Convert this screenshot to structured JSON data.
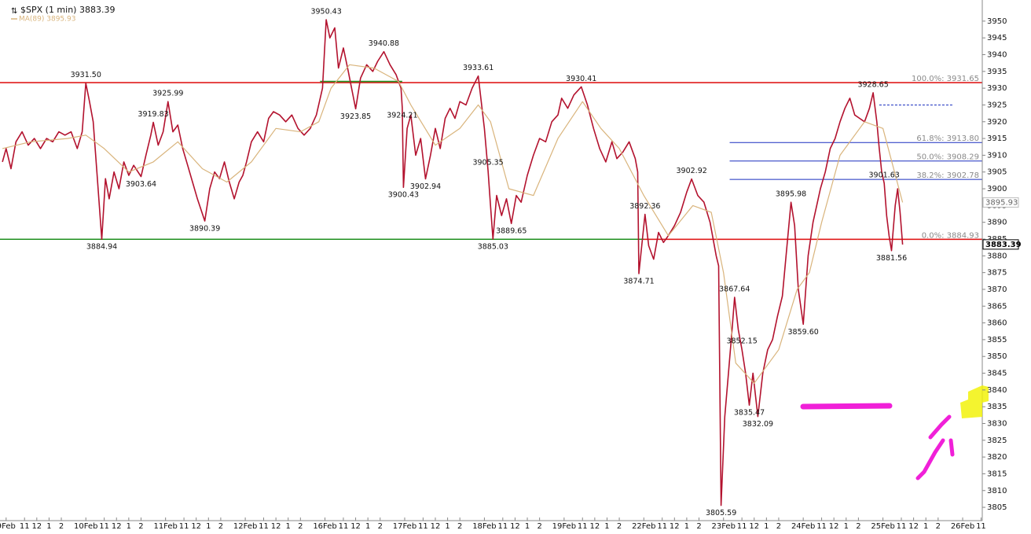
{
  "chart_data": {
    "type": "line",
    "xlim": [
      -0.5,
      79.6
    ],
    "ylim": [
      3801.5,
      3956.3
    ],
    "yticks": [
      3805,
      3810,
      3815,
      3820,
      3825,
      3830,
      3835,
      3840,
      3845,
      3850,
      3855,
      3860,
      3865,
      3870,
      3875,
      3880,
      3885,
      3890,
      3895,
      3900,
      3905,
      3910,
      3915,
      3920,
      3925,
      3930,
      3935,
      3940,
      3945,
      3950
    ],
    "xticks": [
      {
        "value": 0,
        "label": "9Feb"
      },
      {
        "value": 1.5,
        "label": "11"
      },
      {
        "value": 2.5,
        "label": "12"
      },
      {
        "value": 3.5,
        "label": "1"
      },
      {
        "value": 4.5,
        "label": "2"
      },
      {
        "value": 6.5,
        "label": "10Feb"
      },
      {
        "value": 8,
        "label": "11"
      },
      {
        "value": 9,
        "label": "12"
      },
      {
        "value": 10,
        "label": "1"
      },
      {
        "value": 11,
        "label": "2"
      },
      {
        "value": 13,
        "label": "11Feb"
      },
      {
        "value": 14.5,
        "label": "11"
      },
      {
        "value": 15.5,
        "label": "12"
      },
      {
        "value": 16.5,
        "label": "1"
      },
      {
        "value": 17.5,
        "label": "2"
      },
      {
        "value": 19.5,
        "label": "12Feb"
      },
      {
        "value": 21,
        "label": "11"
      },
      {
        "value": 22,
        "label": "12"
      },
      {
        "value": 23,
        "label": "1"
      },
      {
        "value": 24,
        "label": "2"
      },
      {
        "value": 26,
        "label": "16Feb"
      },
      {
        "value": 27.5,
        "label": "11"
      },
      {
        "value": 28.5,
        "label": "12"
      },
      {
        "value": 29.5,
        "label": "1"
      },
      {
        "value": 30.5,
        "label": "2"
      },
      {
        "value": 32.5,
        "label": "17Feb"
      },
      {
        "value": 34,
        "label": "11"
      },
      {
        "value": 35,
        "label": "12"
      },
      {
        "value": 36,
        "label": "1"
      },
      {
        "value": 37,
        "label": "2"
      },
      {
        "value": 39,
        "label": "18Feb"
      },
      {
        "value": 40.5,
        "label": "11"
      },
      {
        "value": 41.5,
        "label": "12"
      },
      {
        "value": 42.5,
        "label": "1"
      },
      {
        "value": 43.5,
        "label": "2"
      },
      {
        "value": 45.5,
        "label": "19Feb"
      },
      {
        "value": 47,
        "label": "11"
      },
      {
        "value": 48,
        "label": "12"
      },
      {
        "value": 49,
        "label": "1"
      },
      {
        "value": 50,
        "label": "2"
      },
      {
        "value": 52,
        "label": "22Feb"
      },
      {
        "value": 53.5,
        "label": "11"
      },
      {
        "value": 54.5,
        "label": "12"
      },
      {
        "value": 55.5,
        "label": "1"
      },
      {
        "value": 56.5,
        "label": "2"
      },
      {
        "value": 58.5,
        "label": "23Feb"
      },
      {
        "value": 60,
        "label": "11"
      },
      {
        "value": 61,
        "label": "12"
      },
      {
        "value": 62,
        "label": "1"
      },
      {
        "value": 63,
        "label": "2"
      },
      {
        "value": 65,
        "label": "24Feb"
      },
      {
        "value": 66.5,
        "label": "11"
      },
      {
        "value": 67.5,
        "label": "12"
      },
      {
        "value": 68.5,
        "label": "1"
      },
      {
        "value": 69.5,
        "label": "2"
      },
      {
        "value": 71.5,
        "label": "25Feb"
      },
      {
        "value": 73,
        "label": "11"
      },
      {
        "value": 74,
        "label": "12"
      },
      {
        "value": 75,
        "label": "1"
      },
      {
        "value": 76,
        "label": "2"
      },
      {
        "value": 78,
        "label": "26Feb"
      },
      {
        "value": 79.5,
        "label": "11"
      }
    ],
    "series": [
      {
        "name": "$SPX (1 min) 3883.39",
        "color": "#b3122e",
        "last_value": 3883.39,
        "x": [
          -0.3,
          0,
          0.4,
          0.8,
          1.3,
          1.8,
          2.3,
          2.8,
          3.3,
          3.8,
          4.3,
          4.8,
          5.3,
          5.8,
          6.2,
          6.5,
          6.8,
          7.1,
          7.4,
          7.6,
          7.8,
          8.1,
          8.4,
          8.8,
          9.2,
          9.6,
          10.0,
          10.4,
          11.0,
          11.4,
          11.8,
          12.0,
          12.4,
          12.8,
          13.2,
          13.6,
          14.0,
          14.4,
          14.8,
          15.2,
          15.6,
          16.2,
          16.6,
          17.0,
          17.4,
          17.8,
          18.2,
          18.6,
          19.0,
          19.3,
          19.6,
          20.0,
          20.5,
          21.0,
          21.4,
          21.8,
          22.3,
          22.8,
          23.3,
          23.8,
          24.3,
          24.8,
          25.3,
          25.8,
          26.1,
          26.4,
          26.8,
          27.1,
          27.5,
          27.9,
          28.5,
          28.9,
          29.4,
          29.9,
          30.3,
          30.8,
          31.3,
          31.8,
          32.2,
          32.3,
          32.4,
          32.7,
          33.0,
          33.4,
          33.8,
          34.2,
          34.6,
          35.0,
          35.4,
          35.8,
          36.2,
          36.6,
          37.0,
          37.5,
          38.0,
          38.5,
          39.0,
          39.3,
          39.5,
          39.7,
          40.0,
          40.4,
          40.8,
          41.2,
          41.6,
          42.0,
          42.5,
          43.0,
          43.5,
          44.0,
          44.5,
          45.0,
          45.3,
          45.8,
          46.3,
          46.9,
          47.4,
          47.9,
          48.4,
          48.9,
          49.4,
          49.8,
          50.3,
          50.8,
          51.3,
          51.5,
          51.6,
          51.8,
          52.1,
          52.4,
          52.8,
          53.2,
          53.6,
          54.0,
          54.5,
          55.0,
          55.5,
          55.9,
          56.4,
          56.9,
          57.4,
          57.9,
          58.1,
          58.3,
          58.6,
          58.9,
          59.2,
          59.4,
          59.7,
          60.0,
          60.3,
          60.6,
          60.9,
          61.3,
          61.7,
          62.1,
          62.5,
          62.9,
          63.3,
          63.6,
          64.0,
          64.3,
          64.6,
          65.0,
          65.4,
          65.8,
          66.1,
          66.4,
          66.8,
          67.2,
          67.6,
          68.0,
          68.4,
          68.8,
          69.2,
          69.6,
          70.0,
          70.4,
          70.7,
          71.0,
          71.2,
          71.4,
          71.6,
          71.8,
          72.0,
          72.2,
          72.5,
          72.7,
          72.9,
          73.1
        ],
        "values": [
          3908,
          3912,
          3906,
          3914,
          3917,
          3913,
          3915,
          3912,
          3915,
          3914,
          3917,
          3916,
          3917,
          3912,
          3917,
          3931.5,
          3926,
          3920,
          3905,
          3895,
          3884.94,
          3903,
          3897,
          3905,
          3900,
          3908,
          3904,
          3907,
          3903.64,
          3910,
          3916,
          3919.83,
          3913,
          3917,
          3925.99,
          3917,
          3919,
          3912,
          3907,
          3902,
          3897,
          3890.39,
          3900,
          3905,
          3903,
          3908,
          3902,
          3897,
          3902,
          3904,
          3908,
          3914,
          3917,
          3914,
          3921,
          3923,
          3922,
          3920,
          3922,
          3918,
          3916,
          3918,
          3922,
          3930,
          3950.43,
          3945,
          3948,
          3936,
          3942,
          3935,
          3923.85,
          3933,
          3937,
          3935,
          3938,
          3940.88,
          3937,
          3934,
          3930,
          3924.21,
          3900.43,
          3918,
          3922,
          3910,
          3915,
          3902.94,
          3910,
          3918,
          3912,
          3921,
          3924,
          3921,
          3926,
          3925,
          3930,
          3933.61,
          3918,
          3905.35,
          3895,
          3885.03,
          3898,
          3892,
          3897,
          3889.65,
          3898,
          3896,
          3904,
          3910,
          3915,
          3914,
          3920,
          3922,
          3927,
          3924,
          3928,
          3930.41,
          3925,
          3918,
          3912,
          3908,
          3914,
          3909,
          3911,
          3914,
          3909,
          3905,
          3874.71,
          3882,
          3892.36,
          3883,
          3879,
          3887,
          3884,
          3886,
          3889,
          3893,
          3899,
          3902.92,
          3898,
          3896,
          3890,
          3880,
          3877,
          3805.59,
          3832,
          3845,
          3858,
          3867.64,
          3858,
          3852.15,
          3845,
          3835.47,
          3845,
          3832.09,
          3845,
          3852,
          3855,
          3862,
          3868,
          3880,
          3895.98,
          3889,
          3870,
          3859.6,
          3880,
          3890,
          3895,
          3900,
          3905,
          3912,
          3915,
          3920,
          3924,
          3927,
          3922,
          3921,
          3920,
          3924,
          3928.65,
          3920,
          3912,
          3905,
          3901.63,
          3892,
          3886,
          3881.56,
          3895,
          3900,
          3893,
          3883.39
        ]
      },
      {
        "name": "MA(89) 3895.93",
        "color": "#d9b47c",
        "last_value": 3895.93,
        "x": [
          -0.3,
          2,
          5,
          6.5,
          8,
          10,
          12,
          14,
          16,
          18,
          20,
          22,
          24,
          25.5,
          26.5,
          28,
          30,
          32,
          33,
          35,
          37,
          38.5,
          39.5,
          41,
          43,
          45,
          47,
          48.5,
          50,
          52,
          54,
          56,
          57.5,
          58.5,
          59.5,
          61,
          63,
          64.5,
          65.5,
          66.5,
          68,
          70,
          71.5,
          73.1
        ],
        "values": [
          3912,
          3914,
          3915,
          3916,
          3912,
          3905,
          3908,
          3914,
          3906,
          3902,
          3908,
          3918,
          3917,
          3920,
          3930,
          3937,
          3936,
          3932,
          3925,
          3913,
          3918,
          3925,
          3920,
          3900,
          3898,
          3915,
          3926,
          3918,
          3912,
          3898,
          3886,
          3895,
          3893,
          3875,
          3848,
          3842,
          3852,
          3870,
          3875,
          3890,
          3910,
          3920,
          3918,
          3895.93
        ]
      }
    ],
    "levels": [
      {
        "value": 3931.65,
        "color": "#e01b1b",
        "from": -0.5,
        "label": "100.0%: 3931.65"
      },
      {
        "value": 3884.94,
        "color": "#1f8f1f",
        "from": -0.5
      },
      {
        "value": 3932,
        "color": "#1f8f1f",
        "from": 25.6,
        "to": 32.3
      },
      {
        "value": 3884.93,
        "color": "#e01b1b",
        "from": 52,
        "label": "0.0%: 3884.93"
      },
      {
        "value": 3913.8,
        "color": "#1a2fbf",
        "from": 59,
        "label": "61.8%: 3913.80"
      },
      {
        "value": 3908.29,
        "color": "#1a2fbf",
        "from": 59,
        "label": "50.0%: 3908.29"
      },
      {
        "value": 3902.78,
        "color": "#1a2fbf",
        "from": 59,
        "label": "38.2%: 3902.78"
      },
      {
        "value": 3925,
        "color": "#1a2fbf",
        "from": 71.2,
        "to": 77.2,
        "dash": true
      }
    ],
    "annotations": [
      {
        "x": 6.5,
        "value": 3931.5,
        "label": "3931.50",
        "side": "above"
      },
      {
        "x": 7.8,
        "value": 3884.94,
        "label": "3884.94",
        "side": "below"
      },
      {
        "x": 11.0,
        "value": 3903.64,
        "label": "3903.64",
        "side": "below"
      },
      {
        "x": 12.0,
        "value": 3919.83,
        "label": "3919.83",
        "side": "above"
      },
      {
        "x": 13.2,
        "value": 3925.99,
        "label": "3925.99",
        "side": "above"
      },
      {
        "x": 16.2,
        "value": 3890.39,
        "label": "3890.39",
        "side": "below"
      },
      {
        "x": 26.1,
        "value": 3950.43,
        "label": "3950.43",
        "side": "above"
      },
      {
        "x": 28.5,
        "value": 3923.85,
        "label": "3923.85",
        "side": "below"
      },
      {
        "x": 30.8,
        "value": 3940.88,
        "label": "3940.88",
        "side": "above"
      },
      {
        "x": 32.3,
        "value": 3924.21,
        "label": "3924.21",
        "side": "below"
      },
      {
        "x": 32.4,
        "value": 3900.43,
        "label": "3900.43",
        "side": "below"
      },
      {
        "x": 34.2,
        "value": 3902.94,
        "label": "3902.94",
        "side": "below"
      },
      {
        "x": 38.5,
        "value": 3933.61,
        "label": "3933.61",
        "side": "above"
      },
      {
        "x": 39.3,
        "value": 3905.35,
        "label": "3905.35",
        "side": "above"
      },
      {
        "x": 39.7,
        "value": 3885.03,
        "label": "3885.03",
        "side": "below"
      },
      {
        "x": 41.2,
        "value": 3889.65,
        "label": "3889.65",
        "side": "below"
      },
      {
        "x": 46.9,
        "value": 3930.41,
        "label": "3930.41",
        "side": "above"
      },
      {
        "x": 51.6,
        "value": 3874.71,
        "label": "3874.71",
        "side": "below"
      },
      {
        "x": 52.1,
        "value": 3892.36,
        "label": "3892.36",
        "side": "above"
      },
      {
        "x": 55.9,
        "value": 3902.92,
        "label": "3902.92",
        "side": "above"
      },
      {
        "x": 58.3,
        "value": 3805.59,
        "label": "3805.59",
        "side": "below"
      },
      {
        "x": 59.4,
        "value": 3867.64,
        "label": "3867.64",
        "side": "above"
      },
      {
        "x": 60.0,
        "value": 3852.15,
        "label": "3852.15",
        "side": "above"
      },
      {
        "x": 60.6,
        "value": 3835.47,
        "label": "3835.47",
        "side": "below"
      },
      {
        "x": 61.3,
        "value": 3832.09,
        "label": "3832.09",
        "side": "below"
      },
      {
        "x": 64.0,
        "value": 3895.98,
        "label": "3895.98",
        "side": "above"
      },
      {
        "x": 65.0,
        "value": 3859.6,
        "label": "3859.60",
        "side": "below"
      },
      {
        "x": 70.7,
        "value": 3928.65,
        "label": "3928.65",
        "side": "above"
      },
      {
        "x": 71.6,
        "value": 3901.63,
        "label": "3901.63",
        "side": "above"
      },
      {
        "x": 72.2,
        "value": 3881.56,
        "label": "3881.56",
        "side": "below"
      }
    ]
  }
}
